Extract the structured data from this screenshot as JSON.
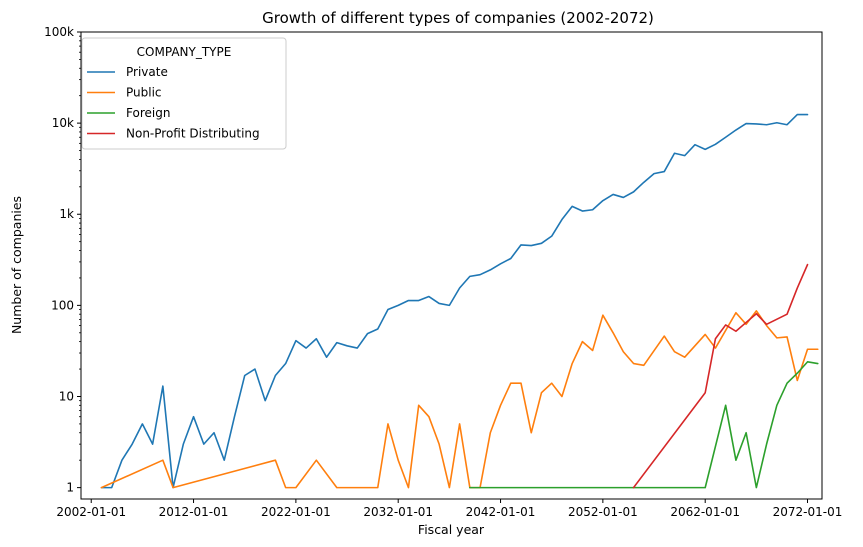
{
  "chart_data": {
    "type": "line",
    "title": "Growth of different types of companies (2002-2072)",
    "xlabel": "Fiscal year",
    "ylabel": "Number of companies",
    "yscale": "log",
    "ylim": [
      0.75,
      100000
    ],
    "xlim": [
      "2001-01-01",
      "2073-06-01"
    ],
    "grid": false,
    "legend": {
      "title": "COMPANY_TYPE",
      "placement": "top-left"
    },
    "x_ticks": [
      "2002-01-01",
      "2012-01-01",
      "2022-01-01",
      "2032-01-01",
      "2042-01-01",
      "2052-01-01",
      "2062-01-01",
      "2072-01-01"
    ],
    "y_ticks": [
      {
        "value": 1,
        "label": "1"
      },
      {
        "value": 10,
        "label": "10"
      },
      {
        "value": 100,
        "label": "100"
      },
      {
        "value": 1000,
        "label": "1k"
      },
      {
        "value": 10000,
        "label": "10k"
      },
      {
        "value": 100000,
        "label": "100k"
      }
    ],
    "series": [
      {
        "name": "Private",
        "color": "#1f77b4",
        "points": [
          [
            "2003-01-01",
            1
          ],
          [
            "2004-01-01",
            1
          ],
          [
            "2005-01-01",
            2
          ],
          [
            "2006-01-01",
            3
          ],
          [
            "2007-01-01",
            5
          ],
          [
            "2008-01-01",
            3
          ],
          [
            "2009-01-01",
            13
          ],
          [
            "2010-01-01",
            1
          ],
          [
            "2011-01-01",
            3
          ],
          [
            "2012-01-01",
            6
          ],
          [
            "2013-01-01",
            3
          ],
          [
            "2014-01-01",
            4
          ],
          [
            "2015-01-01",
            2
          ],
          [
            "2016-01-01",
            6
          ],
          [
            "2017-01-01",
            17
          ],
          [
            "2018-01-01",
            20
          ],
          [
            "2019-01-01",
            9
          ],
          [
            "2020-01-01",
            17
          ],
          [
            "2021-01-01",
            23
          ],
          [
            "2022-01-01",
            41
          ],
          [
            "2023-01-01",
            34
          ],
          [
            "2024-01-01",
            43
          ],
          [
            "2025-01-01",
            27
          ],
          [
            "2026-01-01",
            39
          ],
          [
            "2027-01-01",
            36
          ],
          [
            "2028-01-01",
            34
          ],
          [
            "2029-01-01",
            49
          ],
          [
            "2030-01-01",
            55
          ],
          [
            "2031-01-01",
            90
          ],
          [
            "2032-01-01",
            100
          ],
          [
            "2033-01-01",
            113
          ],
          [
            "2034-01-01",
            113
          ],
          [
            "2035-01-01",
            125
          ],
          [
            "2036-01-01",
            105
          ],
          [
            "2037-01-01",
            100
          ],
          [
            "2038-01-01",
            155
          ],
          [
            "2039-01-01",
            208
          ],
          [
            "2040-01-01",
            217
          ],
          [
            "2041-01-01",
            245
          ],
          [
            "2042-01-01",
            286
          ],
          [
            "2043-01-01",
            327
          ],
          [
            "2044-01-01",
            461
          ],
          [
            "2045-01-01",
            453
          ],
          [
            "2046-01-01",
            480
          ],
          [
            "2047-01-01",
            575
          ],
          [
            "2048-01-01",
            875
          ],
          [
            "2049-01-01",
            1220
          ],
          [
            "2050-01-01",
            1085
          ],
          [
            "2051-01-01",
            1120
          ],
          [
            "2052-01-01",
            1410
          ],
          [
            "2053-01-01",
            1650
          ],
          [
            "2054-01-01",
            1530
          ],
          [
            "2055-01-01",
            1760
          ],
          [
            "2056-01-01",
            2240
          ],
          [
            "2057-01-01",
            2790
          ],
          [
            "2058-01-01",
            2940
          ],
          [
            "2059-01-01",
            4670
          ],
          [
            "2060-01-01",
            4400
          ],
          [
            "2061-01-01",
            5800
          ],
          [
            "2062-01-01",
            5150
          ],
          [
            "2063-01-01",
            5850
          ],
          [
            "2064-01-01",
            7000
          ],
          [
            "2065-01-01",
            8400
          ],
          [
            "2066-01-01",
            9900
          ],
          [
            "2067-01-01",
            9800
          ],
          [
            "2068-01-01",
            9600
          ],
          [
            "2069-01-01",
            10100
          ],
          [
            "2070-01-01",
            9600
          ],
          [
            "2071-01-01",
            12400
          ],
          [
            "2072-01-01",
            12400
          ]
        ]
      },
      {
        "name": "Public",
        "color": "#ff7f0e",
        "points": [
          [
            "2003-01-01",
            1
          ],
          [
            "2009-01-01",
            2
          ],
          [
            "2010-01-01",
            1
          ],
          [
            "2020-01-01",
            2
          ],
          [
            "2021-01-01",
            1
          ],
          [
            "2022-01-01",
            1
          ],
          [
            "2024-01-01",
            2
          ],
          [
            "2026-01-01",
            1
          ],
          [
            "2030-01-01",
            1
          ],
          [
            "2031-01-01",
            5
          ],
          [
            "2032-01-01",
            2
          ],
          [
            "2033-01-01",
            1
          ],
          [
            "2034-01-01",
            8
          ],
          [
            "2035-01-01",
            6
          ],
          [
            "2036-01-01",
            3
          ],
          [
            "2037-01-01",
            1
          ],
          [
            "2038-01-01",
            5
          ],
          [
            "2039-01-01",
            1
          ],
          [
            "2040-01-01",
            1
          ],
          [
            "2041-01-01",
            4
          ],
          [
            "2042-01-01",
            8
          ],
          [
            "2043-01-01",
            14
          ],
          [
            "2044-01-01",
            14
          ],
          [
            "2045-01-01",
            4
          ],
          [
            "2046-01-01",
            11
          ],
          [
            "2047-01-01",
            14
          ],
          [
            "2048-01-01",
            10
          ],
          [
            "2049-01-01",
            23
          ],
          [
            "2050-01-01",
            40
          ],
          [
            "2051-01-01",
            32
          ],
          [
            "2052-01-01",
            78
          ],
          [
            "2053-01-01",
            50
          ],
          [
            "2054-01-01",
            31
          ],
          [
            "2055-01-01",
            23
          ],
          [
            "2056-01-01",
            22
          ],
          [
            "2058-01-01",
            46
          ],
          [
            "2059-01-01",
            31
          ],
          [
            "2060-01-01",
            27
          ],
          [
            "2062-01-01",
            48
          ],
          [
            "2063-01-01",
            34
          ],
          [
            "2065-01-01",
            83
          ],
          [
            "2066-01-01",
            62
          ],
          [
            "2067-01-01",
            87
          ],
          [
            "2068-01-01",
            60
          ],
          [
            "2069-01-01",
            44
          ],
          [
            "2070-01-01",
            45
          ],
          [
            "2071-01-01",
            15
          ],
          [
            "2072-01-01",
            33
          ],
          [
            "2073-01-01",
            33
          ]
        ]
      },
      {
        "name": "Foreign",
        "color": "#2ca02c",
        "points": [
          [
            "2039-01-01",
            1
          ],
          [
            "2062-01-01",
            1
          ],
          [
            "2064-01-01",
            8
          ],
          [
            "2065-01-01",
            2
          ],
          [
            "2066-01-01",
            4
          ],
          [
            "2067-01-01",
            1
          ],
          [
            "2068-01-01",
            3
          ],
          [
            "2069-01-01",
            8
          ],
          [
            "2070-01-01",
            14
          ],
          [
            "2071-01-01",
            18
          ],
          [
            "2072-01-01",
            24
          ],
          [
            "2073-01-01",
            23
          ]
        ]
      },
      {
        "name": "Non-Profit Distributing",
        "color": "#d62728",
        "points": [
          [
            "2055-01-01",
            1
          ],
          [
            "2062-01-01",
            11
          ],
          [
            "2063-01-01",
            43
          ],
          [
            "2064-01-01",
            61
          ],
          [
            "2065-01-01",
            52
          ],
          [
            "2066-01-01",
            65
          ],
          [
            "2067-01-01",
            81
          ],
          [
            "2068-01-01",
            62
          ],
          [
            "2070-01-01",
            80
          ],
          [
            "2071-01-01",
            155
          ],
          [
            "2072-01-01",
            280
          ]
        ]
      }
    ]
  }
}
